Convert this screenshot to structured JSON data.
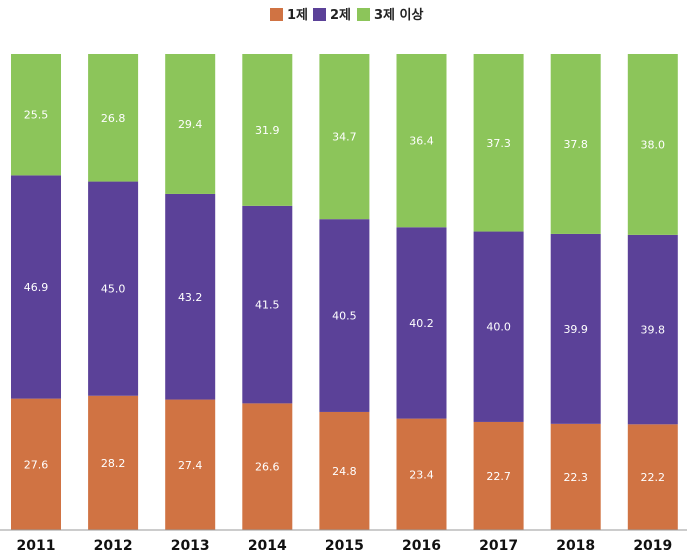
{
  "chart_data": {
    "type": "bar",
    "stacked": true,
    "categories": [
      "2011",
      "2012",
      "2013",
      "2014",
      "2015",
      "2016",
      "2017",
      "2018",
      "2019"
    ],
    "series": [
      {
        "name": "1제",
        "color": "#d07343",
        "values": [
          27.6,
          28.2,
          27.4,
          26.6,
          24.8,
          23.4,
          22.7,
          22.3,
          22.2
        ]
      },
      {
        "name": "2제",
        "color": "#5b4198",
        "values": [
          46.9,
          45.0,
          43.2,
          41.5,
          40.5,
          40.2,
          40.0,
          39.9,
          39.8
        ]
      },
      {
        "name": "3제 이상",
        "color": "#8cc55a",
        "values": [
          25.5,
          26.8,
          29.4,
          31.9,
          34.7,
          36.4,
          37.3,
          37.8,
          38.0
        ]
      }
    ],
    "ylim": [
      0,
      100
    ],
    "grid": false,
    "legend_position": "top-center"
  }
}
